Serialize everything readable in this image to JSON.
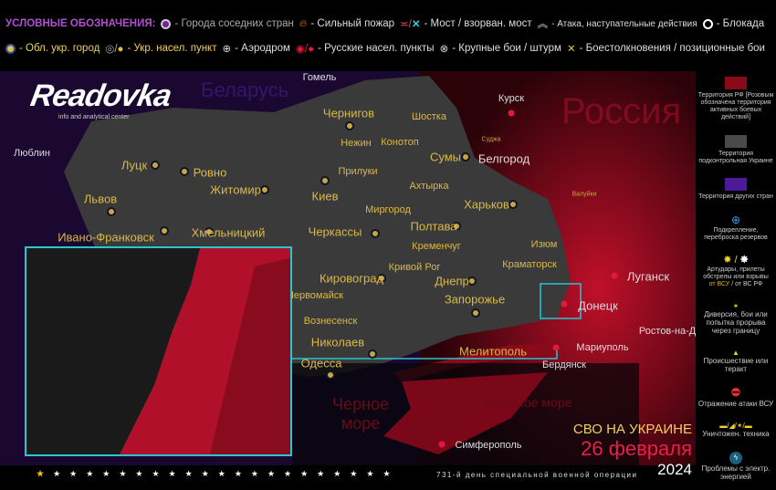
{
  "legend": {
    "title": "УСЛОВНЫЕ ОБОЗНАЧЕНИЯ:",
    "items": [
      {
        "icon": "purple-circle-icon",
        "label": "- Города соседних стран"
      },
      {
        "icon": "fire-icon",
        "label": "- Сильный пожар"
      },
      {
        "icon": "bridge-icon",
        "label": "- Мост / взорван. мост"
      },
      {
        "icon": "attack-chevrons-icon",
        "label": "- Атака, наступательные действия"
      },
      {
        "icon": "blockade-ring-icon",
        "label": "- Блокада"
      },
      {
        "icon": "yellow-city-icon",
        "label": "- Обл. укр. город"
      },
      {
        "icon": "ukr-settlement-icon",
        "label": "- Укр. насел. пункт"
      },
      {
        "icon": "airfield-icon",
        "label": "- Аэродром"
      },
      {
        "icon": "russian-settlement-icon",
        "label": "- Русские  насел. пункты"
      },
      {
        "icon": "assault-icon",
        "label": "- Крупные бои / штурм"
      },
      {
        "icon": "clash-icon",
        "label": "- Боестолкновения / позиционные бои"
      }
    ]
  },
  "brand": {
    "logo": "Readovka",
    "tagline": "info and analytical center"
  },
  "map": {
    "countries": [
      "Россия",
      "Беларусь"
    ],
    "seas": [
      "Черное море",
      "Азовское море"
    ],
    "cities": [
      {
        "name": "Чернигов"
      },
      {
        "name": "Киев"
      },
      {
        "name": "Сумы"
      },
      {
        "name": "Харьков"
      },
      {
        "name": "Полтава"
      },
      {
        "name": "Черкассы"
      },
      {
        "name": "Житомир"
      },
      {
        "name": "Ровно"
      },
      {
        "name": "Луцк"
      },
      {
        "name": "Львов"
      },
      {
        "name": "Ивано-Франковск"
      },
      {
        "name": "Хмельницкий"
      },
      {
        "name": "Кировоград"
      },
      {
        "name": "Днепр"
      },
      {
        "name": "Запорожье"
      },
      {
        "name": "Николаев"
      },
      {
        "name": "Одесса"
      },
      {
        "name": "Мелитополь"
      },
      {
        "name": "Мариуполь"
      },
      {
        "name": "Донецк"
      },
      {
        "name": "Луганск"
      },
      {
        "name": "Ростов-на-Дону"
      },
      {
        "name": "Симферополь"
      },
      {
        "name": "Курск"
      },
      {
        "name": "Белгород"
      },
      {
        "name": "Гомель"
      },
      {
        "name": "Люблин"
      },
      {
        "name": "Бердянск"
      },
      {
        "name": "Изюм"
      },
      {
        "name": "Краматорск"
      },
      {
        "name": "Кривой Рог"
      },
      {
        "name": "Шостка"
      },
      {
        "name": "Конотоп"
      },
      {
        "name": "Нежин"
      },
      {
        "name": "Прилуки"
      },
      {
        "name": "Ахтырка"
      },
      {
        "name": "Миргород"
      },
      {
        "name": "Кременчуг"
      },
      {
        "name": "Первомайск"
      },
      {
        "name": "Вознесенск"
      },
      {
        "name": "Суджа"
      },
      {
        "name": "Валуйки"
      }
    ]
  },
  "sidebar": [
    {
      "label": "Территория РФ [Розовым обозначена территория активных боевых действий]",
      "color": "#8b0a1a"
    },
    {
      "label": "Территория подконтрольная Украине",
      "color": "#4a4a4a"
    },
    {
      "label": "Территория других стран",
      "color": "#4a1a9a"
    },
    {
      "label": "Подкрепление, переброска резервов",
      "icon": "plus-circle-icon"
    },
    {
      "label": "Артудары, прилеты обстрелы или взрывы",
      "sub1": "от ВСУ",
      "sub2": "/  от ВС РФ",
      "icon": "explosion-icon"
    },
    {
      "label": "Диверсия, бои или попытка прорыва через границу",
      "icon": "diversion-star-icon"
    },
    {
      "label": "Происшествие или теракт",
      "icon": "warning-icon"
    },
    {
      "label": "Отражение атаки ВСУ",
      "icon": "no-entry-icon"
    },
    {
      "label": "Уничтожен. техника",
      "icon": "destroyed-vehicle-icon"
    },
    {
      "label": "Проблемы с электр. энергией",
      "icon": "lightning-icon"
    }
  ],
  "footer": {
    "title": "СВО НА УКРАИНЕ",
    "date": "26 февраля",
    "year": "2024",
    "day_note": "731-й день специальной военной операции"
  },
  "colors": {
    "russia": "#8b0a1a",
    "ukraine": "#3a3a3a",
    "other": "#2a0e55",
    "inset_border": "#2bc4cf",
    "accent_yellow": "#f0d060",
    "accent_red": "#e8204a"
  }
}
